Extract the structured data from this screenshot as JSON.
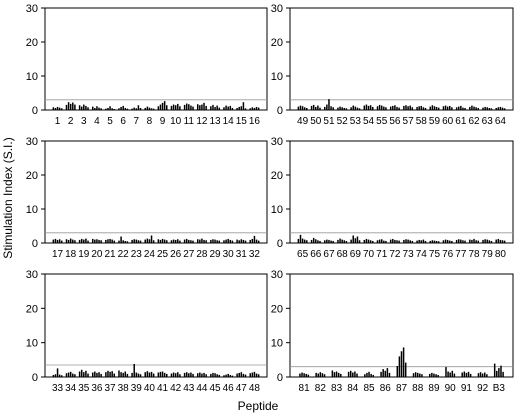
{
  "figure": {
    "ylabel": "Stimulation Index (S.I.)",
    "xlabel": "Peptide"
  },
  "chart_data": [
    {
      "type": "bar",
      "panel": "top-left",
      "categories": [
        "1",
        "2",
        "3",
        "4",
        "5",
        "6",
        "7",
        "8",
        "9",
        "10",
        "11",
        "12",
        "13",
        "14",
        "15",
        "16"
      ],
      "values": [
        [
          0.8,
          0.6,
          0.9,
          0.7,
          0.5
        ],
        [
          1.5,
          2.3,
          1.8,
          2.2,
          1.6
        ],
        [
          1.4,
          1.0,
          1.6,
          1.2,
          0.8
        ],
        [
          1.0,
          0.6,
          1.1,
          0.7,
          0.5
        ],
        [
          0.4,
          0.6,
          1.1,
          0.5,
          0.3
        ],
        [
          0.5,
          0.9,
          1.2,
          0.6,
          0.4
        ],
        [
          0.4,
          0.7,
          0.5,
          1.4,
          0.6
        ],
        [
          0.6,
          1.0,
          0.7,
          0.5,
          0.4
        ],
        [
          1.1,
          1.6,
          2.1,
          2.6,
          1.4
        ],
        [
          1.2,
          1.6,
          1.4,
          1.8,
          1.1
        ],
        [
          1.5,
          1.9,
          1.7,
          1.3,
          1.0
        ],
        [
          1.7,
          1.4,
          1.6,
          2.1,
          1.2
        ],
        [
          1.1,
          1.5,
          0.9,
          1.3,
          0.7
        ],
        [
          0.8,
          1.3,
          1.0,
          1.2,
          0.6
        ],
        [
          0.6,
          0.9,
          1.1,
          2.3,
          0.5
        ],
        [
          0.5,
          0.8,
          0.6,
          0.9,
          0.7
        ]
      ],
      "threshold": 3,
      "ylim": [
        0,
        30
      ],
      "yticks": [
        0,
        10,
        20,
        30
      ]
    },
    {
      "type": "bar",
      "panel": "top-right",
      "categories": [
        "49",
        "50",
        "51",
        "52",
        "53",
        "54",
        "55",
        "56",
        "57",
        "58",
        "59",
        "60",
        "61",
        "62",
        "63",
        "64"
      ],
      "values": [
        [
          1.0,
          1.3,
          1.1,
          0.8,
          0.6
        ],
        [
          1.2,
          1.5,
          0.9,
          1.3,
          0.7
        ],
        [
          0.9,
          1.6,
          3.2,
          1.1,
          0.8
        ],
        [
          0.7,
          1.0,
          0.8,
          0.6,
          0.5
        ],
        [
          0.8,
          1.3,
          1.0,
          0.7,
          0.5
        ],
        [
          1.3,
          1.6,
          1.2,
          1.4,
          0.9
        ],
        [
          1.1,
          1.5,
          1.3,
          1.0,
          0.8
        ],
        [
          1.0,
          1.2,
          1.4,
          0.9,
          0.7
        ],
        [
          1.2,
          1.4,
          1.1,
          1.3,
          0.8
        ],
        [
          0.9,
          1.1,
          1.2,
          0.8,
          0.6
        ],
        [
          1.0,
          1.4,
          1.1,
          0.9,
          0.7
        ],
        [
          1.1,
          1.3,
          1.0,
          1.2,
          0.8
        ],
        [
          0.8,
          1.0,
          1.2,
          0.7,
          0.6
        ],
        [
          0.9,
          1.3,
          1.0,
          0.8,
          0.6
        ],
        [
          0.7,
          0.9,
          0.8,
          0.6,
          0.5
        ],
        [
          0.6,
          0.8,
          0.9,
          0.7,
          0.5
        ]
      ],
      "threshold": 3,
      "ylim": [
        0,
        30
      ],
      "yticks": [
        0,
        10,
        20,
        30
      ]
    },
    {
      "type": "bar",
      "panel": "middle-left",
      "categories": [
        "17",
        "18",
        "19",
        "20",
        "21",
        "22",
        "23",
        "24",
        "25",
        "26",
        "27",
        "28",
        "29",
        "30",
        "31",
        "32"
      ],
      "values": [
        [
          1.0,
          1.2,
          0.9,
          1.1,
          0.7
        ],
        [
          1.1,
          0.9,
          1.3,
          1.0,
          0.8
        ],
        [
          0.9,
          1.2,
          1.0,
          1.3,
          0.7
        ],
        [
          1.2,
          1.0,
          1.1,
          0.9,
          0.8
        ],
        [
          0.9,
          1.1,
          1.2,
          1.0,
          0.7
        ],
        [
          0.7,
          1.9,
          0.8,
          0.6,
          0.5
        ],
        [
          0.9,
          1.1,
          1.0,
          0.8,
          0.7
        ],
        [
          1.0,
          1.3,
          1.1,
          2.2,
          0.8
        ],
        [
          1.1,
          0.9,
          1.2,
          1.0,
          0.8
        ],
        [
          0.8,
          1.0,
          0.9,
          1.1,
          0.7
        ],
        [
          1.0,
          1.2,
          0.9,
          0.8,
          0.7
        ],
        [
          1.1,
          1.0,
          1.3,
          0.9,
          0.8
        ],
        [
          0.9,
          1.1,
          1.0,
          0.8,
          0.7
        ],
        [
          0.8,
          1.0,
          1.2,
          0.9,
          0.7
        ],
        [
          1.0,
          0.8,
          1.1,
          0.9,
          0.7
        ],
        [
          0.9,
          1.2,
          2.1,
          1.0,
          0.7
        ]
      ],
      "threshold": 3,
      "ylim": [
        0,
        30
      ],
      "yticks": [
        0,
        10,
        20,
        30
      ]
    },
    {
      "type": "bar",
      "panel": "middle-right",
      "categories": [
        "65",
        "66",
        "67",
        "68",
        "69",
        "70",
        "71",
        "72",
        "73",
        "74",
        "75",
        "76",
        "77",
        "78",
        "79",
        "80"
      ],
      "values": [
        [
          1.2,
          2.4,
          1.3,
          1.0,
          0.8
        ],
        [
          0.9,
          1.5,
          1.1,
          0.8,
          0.6
        ],
        [
          0.8,
          1.0,
          0.9,
          0.7,
          0.6
        ],
        [
          0.9,
          1.3,
          1.0,
          0.8,
          0.6
        ],
        [
          1.0,
          2.2,
          1.4,
          1.9,
          0.8
        ],
        [
          0.9,
          1.2,
          1.0,
          0.8,
          0.6
        ],
        [
          0.8,
          1.0,
          1.1,
          0.7,
          0.6
        ],
        [
          1.0,
          1.2,
          0.9,
          0.8,
          0.7
        ],
        [
          0.9,
          1.1,
          1.0,
          0.8,
          0.6
        ],
        [
          0.7,
          0.9,
          0.8,
          1.0,
          0.6
        ],
        [
          0.6,
          0.8,
          0.7,
          0.6,
          0.5
        ],
        [
          0.8,
          1.0,
          0.9,
          0.7,
          0.6
        ],
        [
          0.9,
          1.1,
          1.0,
          0.8,
          0.7
        ],
        [
          1.0,
          0.9,
          1.2,
          0.8,
          0.7
        ],
        [
          0.9,
          1.1,
          1.0,
          0.8,
          0.6
        ],
        [
          1.0,
          1.2,
          0.9,
          0.8,
          0.7
        ]
      ],
      "threshold": 3,
      "ylim": [
        0,
        30
      ],
      "yticks": [
        0,
        10,
        20,
        30
      ]
    },
    {
      "type": "bar",
      "panel": "bottom-left",
      "categories": [
        "33",
        "34",
        "35",
        "36",
        "37",
        "38",
        "39",
        "40",
        "41",
        "42",
        "43",
        "44",
        "45",
        "46",
        "47",
        "48"
      ],
      "values": [
        [
          0.6,
          0.8,
          2.5,
          0.7,
          0.5
        ],
        [
          1.1,
          1.3,
          1.5,
          1.0,
          0.8
        ],
        [
          1.6,
          2.1,
          1.4,
          1.8,
          1.0
        ],
        [
          1.3,
          1.6,
          1.2,
          1.4,
          0.9
        ],
        [
          1.4,
          1.8,
          1.5,
          1.7,
          1.0
        ],
        [
          1.9,
          1.4,
          1.2,
          1.6,
          0.9
        ],
        [
          1.2,
          3.8,
          1.3,
          1.0,
          0.8
        ],
        [
          1.4,
          1.7,
          1.3,
          1.5,
          1.0
        ],
        [
          1.3,
          1.5,
          1.6,
          1.2,
          0.9
        ],
        [
          1.0,
          1.3,
          1.1,
          1.4,
          0.8
        ],
        [
          1.2,
          1.4,
          1.1,
          1.3,
          0.9
        ],
        [
          1.1,
          1.3,
          1.0,
          1.2,
          0.8
        ],
        [
          0.9,
          1.2,
          1.1,
          0.8,
          0.6
        ],
        [
          0.5,
          0.7,
          0.9,
          0.6,
          0.4
        ],
        [
          1.0,
          1.2,
          1.4,
          0.9,
          0.7
        ],
        [
          1.1,
          1.3,
          1.5,
          1.0,
          0.8
        ]
      ],
      "threshold": 3.5,
      "ylim": [
        0,
        30
      ],
      "yticks": [
        0,
        10,
        20,
        30
      ]
    },
    {
      "type": "bar",
      "panel": "bottom-right",
      "categories": [
        "81",
        "82",
        "83",
        "84",
        "85",
        "86",
        "87",
        "88",
        "89",
        "90",
        "91",
        "92",
        "B3"
      ],
      "values": [
        [
          1.0,
          1.3,
          1.1,
          0.9,
          0.7
        ],
        [
          1.2,
          1.0,
          1.4,
          1.1,
          0.8
        ],
        [
          1.9,
          1.4,
          1.6,
          1.2,
          0.9
        ],
        [
          1.5,
          1.8,
          1.3,
          1.6,
          1.0
        ],
        [
          0.8,
          1.2,
          1.5,
          0.9,
          0.6
        ],
        [
          1.5,
          2.3,
          1.8,
          2.6,
          1.2
        ],
        [
          3.2,
          6.0,
          7.5,
          8.6,
          4.2
        ],
        [
          1.1,
          1.4,
          1.2,
          1.0,
          0.8
        ],
        [
          0.9,
          1.2,
          1.0,
          0.8,
          0.6
        ],
        [
          2.9,
          1.6,
          1.3,
          1.8,
          1.0
        ],
        [
          1.3,
          1.6,
          1.2,
          1.5,
          0.9
        ],
        [
          1.1,
          1.4,
          1.0,
          1.3,
          0.8
        ],
        [
          3.9,
          1.8,
          2.6,
          3.3,
          1.5
        ]
      ],
      "threshold": 3,
      "ylim": [
        0,
        30
      ],
      "yticks": [
        0,
        10,
        20,
        30
      ]
    }
  ]
}
